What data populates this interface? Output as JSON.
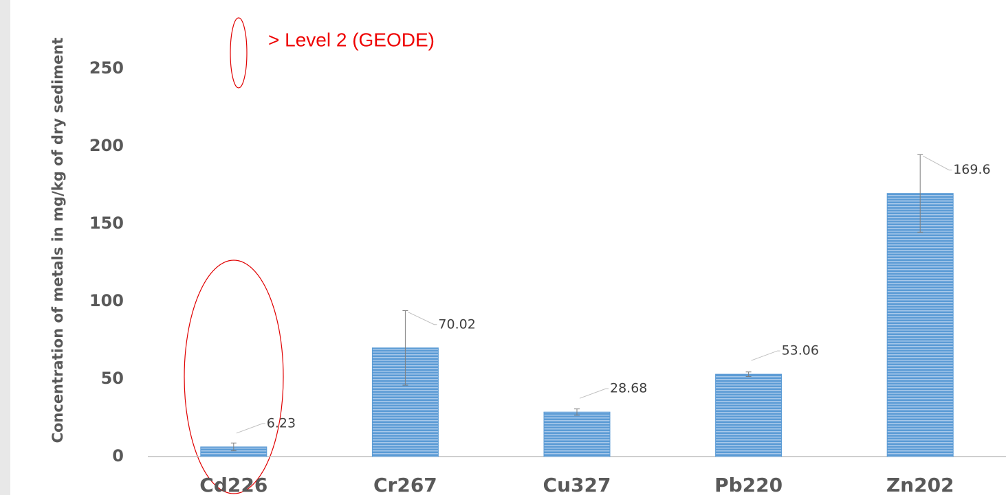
{
  "chart_data": {
    "type": "bar",
    "y_label": "Concentration of metals in mg/kg of dry sediment",
    "annotation": "> Level 2 (GEODE)",
    "categories": [
      "Cd226",
      "Cr267",
      "Cu327",
      "Pb220",
      "Zn202"
    ],
    "values": [
      6.23,
      70.02,
      28.68,
      53.06,
      169.6
    ],
    "errors": [
      2.5,
      24,
      2,
      1.5,
      25
    ],
    "color": "#5b9bd5",
    "ylim": [
      0,
      250
    ],
    "yticks": [
      0,
      50,
      100,
      150,
      200,
      250
    ],
    "grid": false
  }
}
